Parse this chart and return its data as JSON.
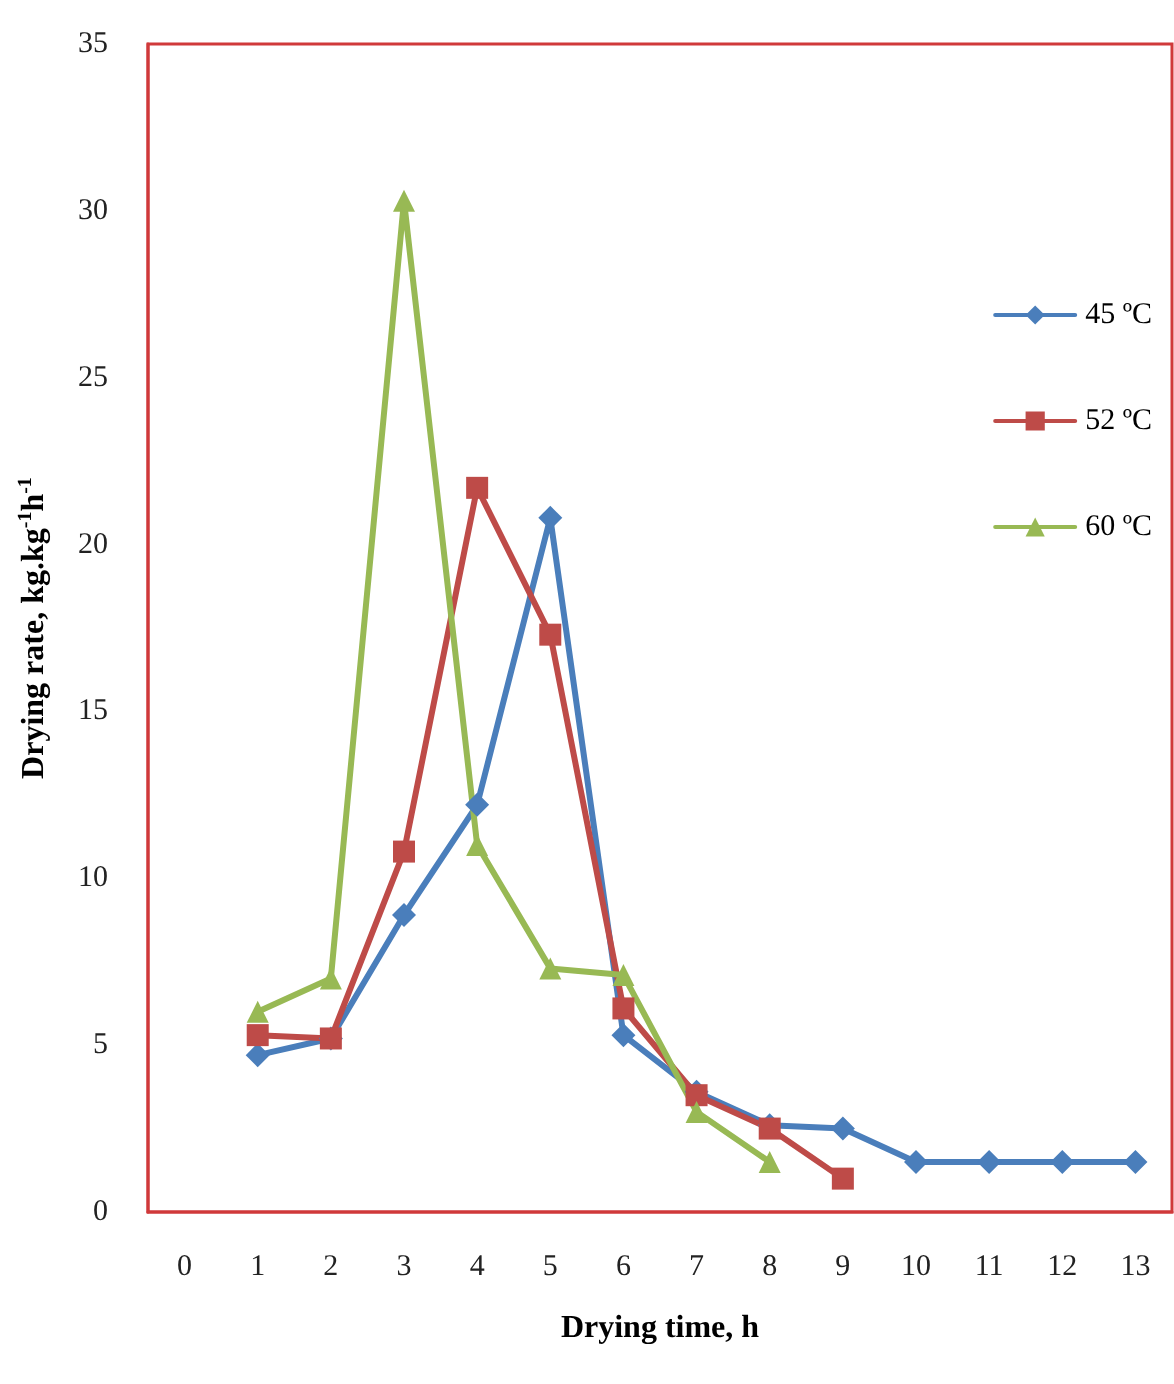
{
  "chart_data": {
    "type": "line",
    "xlabel": "Drying time, h",
    "ylabel": "Drying rate, kg.kg$^{-1}$h$^{-1}$",
    "x": [
      1,
      2,
      3,
      4,
      5,
      6,
      7,
      8,
      9,
      10,
      11,
      12,
      13
    ],
    "xlim": [
      -0.5,
      13.5
    ],
    "xticks": [
      0,
      1,
      2,
      3,
      4,
      5,
      6,
      7,
      8,
      9,
      10,
      11,
      12,
      13
    ],
    "series": [
      {
        "name": "45 ºC",
        "color": "#4a7ebb",
        "marker": "diamond",
        "values": [
          4.7,
          5.2,
          8.9,
          12.2,
          20.8,
          5.3,
          3.6,
          2.6,
          2.5,
          1.5,
          1.5,
          1.5,
          1.5
        ]
      },
      {
        "name": "52 ºC",
        "color": "#be4b48",
        "marker": "square",
        "values": [
          5.3,
          5.2,
          10.8,
          21.7,
          17.3,
          6.1,
          3.5,
          2.5,
          1.0,
          null,
          null,
          null,
          null
        ]
      },
      {
        "name": "60 ºC",
        "color": "#98b954",
        "marker": "triangle",
        "values": [
          6.0,
          7.0,
          30.3,
          11.0,
          7.3,
          7.1,
          3.0,
          1.5,
          null,
          null,
          null,
          null,
          null
        ]
      }
    ],
    "ylim": [
      0,
      35
    ],
    "yticks": [
      0,
      5,
      10,
      15,
      20,
      25,
      30,
      35
    ],
    "grid": false,
    "legend": "right",
    "line_style": "solid"
  }
}
